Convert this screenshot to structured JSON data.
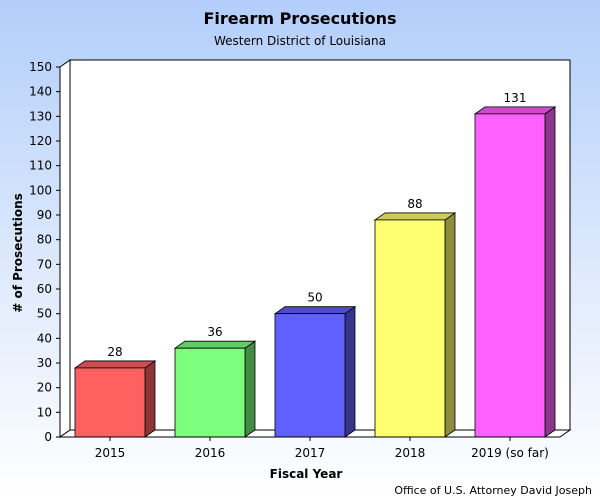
{
  "chart_data": {
    "type": "bar",
    "title": "Firearm Prosecutions",
    "subtitle": "Western District of Louisiana",
    "xlabel": "Fiscal Year",
    "ylabel": "# of Prosecutions",
    "categories": [
      "2015",
      "2016",
      "2017",
      "2018",
      "2019 (so far)"
    ],
    "values": [
      28,
      36,
      50,
      88,
      131
    ],
    "ylim": [
      0,
      150
    ],
    "yticks": [
      0,
      10,
      20,
      30,
      40,
      50,
      60,
      70,
      80,
      90,
      100,
      110,
      120,
      130,
      140,
      150
    ],
    "colors": [
      "#ff6060",
      "#7cff7c",
      "#6060ff",
      "#ffff70",
      "#ff60ff"
    ],
    "grid": false,
    "legend": "none",
    "footer": "Office of U.S. Attorney David Joseph"
  }
}
